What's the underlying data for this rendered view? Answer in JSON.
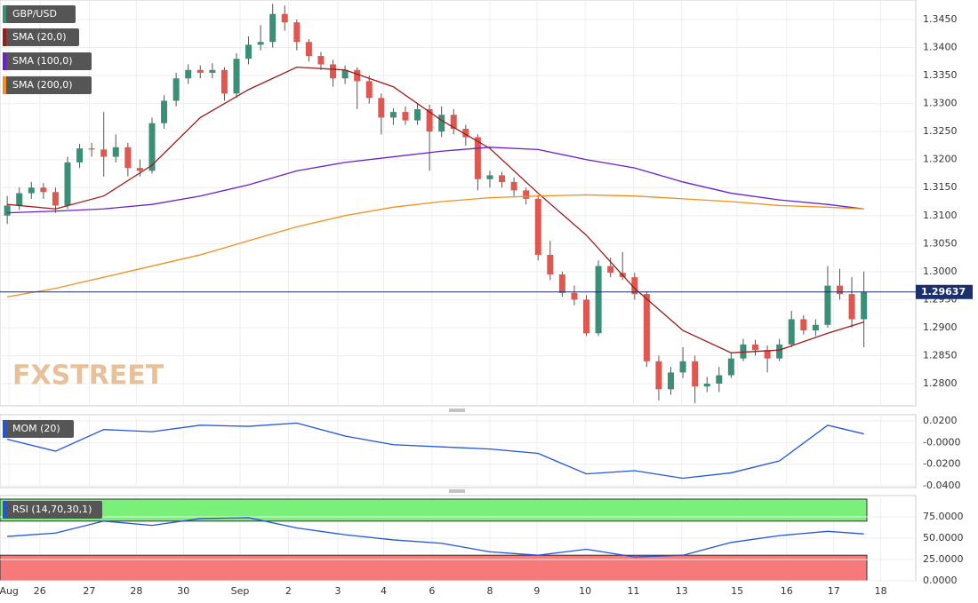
{
  "chart_data": {
    "type": "candlestick",
    "symbol": "GBP/USD",
    "watermark": "FXSTREET",
    "up_color": "#3a8f78",
    "down_color": "#e0574f",
    "ylim": [
      1.27604,
      1.34849
    ],
    "yticks": [
      {
        "value": 1.345,
        "label": "1.3450"
      },
      {
        "value": 1.34,
        "label": "1.3400"
      },
      {
        "value": 1.335,
        "label": "1.3350"
      },
      {
        "value": 1.33,
        "label": "1.3300"
      },
      {
        "value": 1.325,
        "label": "1.3250"
      },
      {
        "value": 1.32,
        "label": "1.3200"
      },
      {
        "value": 1.315,
        "label": "1.3150"
      },
      {
        "value": 1.31,
        "label": "1.3100"
      },
      {
        "value": 1.305,
        "label": "1.3050"
      },
      {
        "value": 1.3,
        "label": "1.3000"
      },
      {
        "value": 1.295,
        "label": "1.2950"
      },
      {
        "value": 1.29,
        "label": "1.2900"
      },
      {
        "value": 1.285,
        "label": "1.2850"
      },
      {
        "value": 1.28,
        "label": "1.2800"
      }
    ],
    "xlim": [
      -0.6,
      75.3
    ],
    "xticks": [
      {
        "value": 0.15,
        "label": "Aug"
      },
      {
        "value": 2.7,
        "label": "26"
      },
      {
        "value": 6.8,
        "label": "27"
      },
      {
        "value": 10.7,
        "label": "28"
      },
      {
        "value": 14.6,
        "label": "30"
      },
      {
        "value": 19.3,
        "label": "Sep"
      },
      {
        "value": 23.3,
        "label": "2"
      },
      {
        "value": 27.4,
        "label": "3"
      },
      {
        "value": 31.2,
        "label": "4"
      },
      {
        "value": 35.2,
        "label": "6"
      },
      {
        "value": 40,
        "label": "8"
      },
      {
        "value": 43.9,
        "label": "9"
      },
      {
        "value": 47.9,
        "label": "10"
      },
      {
        "value": 51.9,
        "label": "11"
      },
      {
        "value": 55.9,
        "label": "13"
      },
      {
        "value": 60.5,
        "label": "15"
      },
      {
        "value": 64.6,
        "label": "16"
      },
      {
        "value": 68.5,
        "label": "17"
      },
      {
        "value": 72.4,
        "label": "18"
      }
    ],
    "candles": [
      [
        1.31,
        1.3135,
        1.3085,
        1.3118
      ],
      [
        1.3118,
        1.315,
        1.311,
        1.314
      ],
      [
        1.314,
        1.316,
        1.313,
        1.315
      ],
      [
        1.315,
        1.3158,
        1.313,
        1.3142
      ],
      [
        1.3142,
        1.315,
        1.3105,
        1.3118
      ],
      [
        1.3118,
        1.3205,
        1.3112,
        1.3195
      ],
      [
        1.3195,
        1.3228,
        1.3185,
        1.322
      ],
      [
        1.322,
        1.323,
        1.3205,
        1.3218
      ],
      [
        1.3218,
        1.3285,
        1.317,
        1.3205
      ],
      [
        1.3205,
        1.3245,
        1.3195,
        1.3222
      ],
      [
        1.3222,
        1.323,
        1.317,
        1.3185
      ],
      [
        1.3185,
        1.32,
        1.317,
        1.318
      ],
      [
        1.318,
        1.3275,
        1.3175,
        1.3265
      ],
      [
        1.3265,
        1.3315,
        1.3255,
        1.3305
      ],
      [
        1.3305,
        1.3355,
        1.3295,
        1.3345
      ],
      [
        1.3345,
        1.337,
        1.3335,
        1.336
      ],
      [
        1.336,
        1.3368,
        1.3345,
        1.3355
      ],
      [
        1.3355,
        1.3372,
        1.3345,
        1.336
      ],
      [
        1.336,
        1.3365,
        1.3305,
        1.3318
      ],
      [
        1.3318,
        1.339,
        1.331,
        1.338
      ],
      [
        1.338,
        1.342,
        1.337,
        1.3405
      ],
      [
        1.3405,
        1.344,
        1.3395,
        1.341
      ],
      [
        1.341,
        1.3478,
        1.34,
        1.346
      ],
      [
        1.346,
        1.3475,
        1.343,
        1.3445
      ],
      [
        1.3445,
        1.345,
        1.3395,
        1.341
      ],
      [
        1.341,
        1.3415,
        1.3375,
        1.3385
      ],
      [
        1.3385,
        1.3392,
        1.336,
        1.337
      ],
      [
        1.337,
        1.3378,
        1.333,
        1.3345
      ],
      [
        1.3345,
        1.3368,
        1.3335,
        1.336
      ],
      [
        1.336,
        1.3365,
        1.329,
        1.334
      ],
      [
        1.334,
        1.335,
        1.33,
        1.331
      ],
      [
        1.331,
        1.3318,
        1.3245,
        1.3275
      ],
      [
        1.3275,
        1.3292,
        1.3262,
        1.3285
      ],
      [
        1.3285,
        1.3295,
        1.3262,
        1.327
      ],
      [
        1.327,
        1.33,
        1.3262,
        1.329
      ],
      [
        1.329,
        1.3298,
        1.318,
        1.325
      ],
      [
        1.325,
        1.3295,
        1.324,
        1.328
      ],
      [
        1.328,
        1.329,
        1.3245,
        1.3255
      ],
      [
        1.3255,
        1.3262,
        1.3225,
        1.324
      ],
      [
        1.324,
        1.3245,
        1.3145,
        1.3165
      ],
      [
        1.3165,
        1.318,
        1.315,
        1.3172
      ],
      [
        1.3172,
        1.3178,
        1.315,
        1.316
      ],
      [
        1.316,
        1.3168,
        1.3135,
        1.3145
      ],
      [
        1.3145,
        1.315,
        1.312,
        1.313
      ],
      [
        1.313,
        1.3135,
        1.302,
        1.303
      ],
      [
        1.303,
        1.3055,
        1.2985,
        1.2995
      ],
      [
        1.2995,
        1.3,
        1.2955,
        1.2962
      ],
      [
        1.2962,
        1.2975,
        1.294,
        1.295
      ],
      [
        1.295,
        1.2958,
        1.2885,
        1.289
      ],
      [
        1.289,
        1.302,
        1.2885,
        1.301
      ],
      [
        1.301,
        1.3025,
        1.299,
        1.2998
      ],
      [
        1.2998,
        1.3035,
        1.2985,
        1.299
      ],
      [
        1.299,
        1.2998,
        1.295,
        1.296
      ],
      [
        1.296,
        1.2965,
        1.283,
        1.284
      ],
      [
        1.284,
        1.285,
        1.277,
        1.279
      ],
      [
        1.279,
        1.283,
        1.278,
        1.282
      ],
      [
        1.282,
        1.2865,
        1.281,
        1.284
      ],
      [
        1.284,
        1.285,
        1.2765,
        1.2795
      ],
      [
        1.2795,
        1.2812,
        1.2785,
        1.28
      ],
      [
        1.28,
        1.283,
        1.2785,
        1.2815
      ],
      [
        1.2815,
        1.2855,
        1.281,
        1.2845
      ],
      [
        1.2845,
        1.288,
        1.284,
        1.287
      ],
      [
        1.287,
        1.2878,
        1.285,
        1.286
      ],
      [
        1.286,
        1.2868,
        1.282,
        1.2845
      ],
      [
        1.2845,
        1.288,
        1.284,
        1.287
      ],
      [
        1.287,
        1.293,
        1.2865,
        1.2915
      ],
      [
        1.2915,
        1.2922,
        1.2888,
        1.2895
      ],
      [
        1.2895,
        1.2915,
        1.2885,
        1.2905
      ],
      [
        1.2905,
        1.301,
        1.29,
        1.2975
      ],
      [
        1.2975,
        1.3005,
        1.295,
        1.296
      ],
      [
        1.296,
        1.299,
        1.29,
        1.2915
      ],
      [
        1.2915,
        1.3,
        1.2865,
        1.29637
      ]
    ],
    "series": [
      {
        "name": "SMA (20,0)",
        "color": "#9b1c1c",
        "x": [
          0,
          4,
          8,
          12,
          16,
          20,
          24,
          28,
          32,
          36,
          40,
          44,
          48,
          52,
          56,
          60,
          64,
          68,
          71
        ],
        "values": [
          1.312,
          1.3112,
          1.3135,
          1.319,
          1.3275,
          1.3325,
          1.3365,
          1.336,
          1.333,
          1.327,
          1.322,
          1.314,
          1.3065,
          1.297,
          1.2895,
          1.2855,
          1.286,
          1.289,
          1.291
        ]
      },
      {
        "name": "SMA (100,0)",
        "color": "#6a1fd0",
        "x": [
          0,
          4,
          8,
          12,
          16,
          20,
          24,
          28,
          32,
          36,
          40,
          44,
          48,
          52,
          56,
          60,
          64,
          68,
          71
        ],
        "values": [
          1.3105,
          1.3108,
          1.3112,
          1.312,
          1.3135,
          1.3155,
          1.318,
          1.3195,
          1.3205,
          1.3215,
          1.3222,
          1.3218,
          1.32,
          1.3185,
          1.316,
          1.314,
          1.3128,
          1.312,
          1.3112
        ]
      },
      {
        "name": "SMA (200,0)",
        "color": "#f0901e",
        "x": [
          0,
          4,
          8,
          12,
          16,
          20,
          24,
          28,
          32,
          36,
          40,
          44,
          48,
          52,
          56,
          60,
          64,
          68,
          71
        ],
        "values": [
          1.2955,
          1.297,
          1.299,
          1.301,
          1.303,
          1.3055,
          1.308,
          1.31,
          1.3115,
          1.3125,
          1.3132,
          1.3135,
          1.3137,
          1.3135,
          1.313,
          1.3125,
          1.3118,
          1.3115,
          1.3112
        ]
      }
    ],
    "indicators": [
      {
        "name": "MOM (20)",
        "color": "#2255dd",
        "ylim": [
          -0.0416,
          0.0257
        ],
        "yticks": [
          {
            "value": 0.02,
            "label": "0.0200"
          },
          {
            "value": 0,
            "label": "-0.0000"
          },
          {
            "value": -0.02,
            "label": "-0.0200"
          },
          {
            "value": -0.04,
            "label": "-0.0400"
          }
        ],
        "x": [
          0,
          4,
          8,
          12,
          16,
          20,
          24,
          28,
          32,
          36,
          40,
          44,
          48,
          52,
          56,
          60,
          64,
          68,
          71
        ],
        "values": [
          0.003,
          -0.008,
          0.012,
          0.01,
          0.016,
          0.015,
          0.018,
          0.006,
          -0.002,
          -0.004,
          -0.006,
          -0.01,
          -0.029,
          -0.026,
          -0.033,
          -0.028,
          -0.017,
          0.016,
          0.008
        ]
      },
      {
        "name": "RSI (14,70,30,1)",
        "color": "#2255dd",
        "ylim": [
          0,
          100
        ],
        "levels": [
          30,
          70
        ],
        "yticks": [
          {
            "value": 75,
            "label": "75.0000"
          },
          {
            "value": 50,
            "label": "50.0000"
          },
          {
            "value": 25,
            "label": "25.0000"
          },
          {
            "value": 0,
            "label": "0.0000"
          }
        ],
        "x": [
          0,
          4,
          8,
          12,
          16,
          20,
          24,
          28,
          32,
          36,
          40,
          44,
          48,
          52,
          56,
          60,
          64,
          68,
          71
        ],
        "values": [
          52,
          56,
          70,
          65,
          73,
          74,
          62,
          54,
          48,
          44,
          34,
          30,
          37,
          28,
          30,
          45,
          53,
          58,
          55
        ]
      }
    ]
  }
}
